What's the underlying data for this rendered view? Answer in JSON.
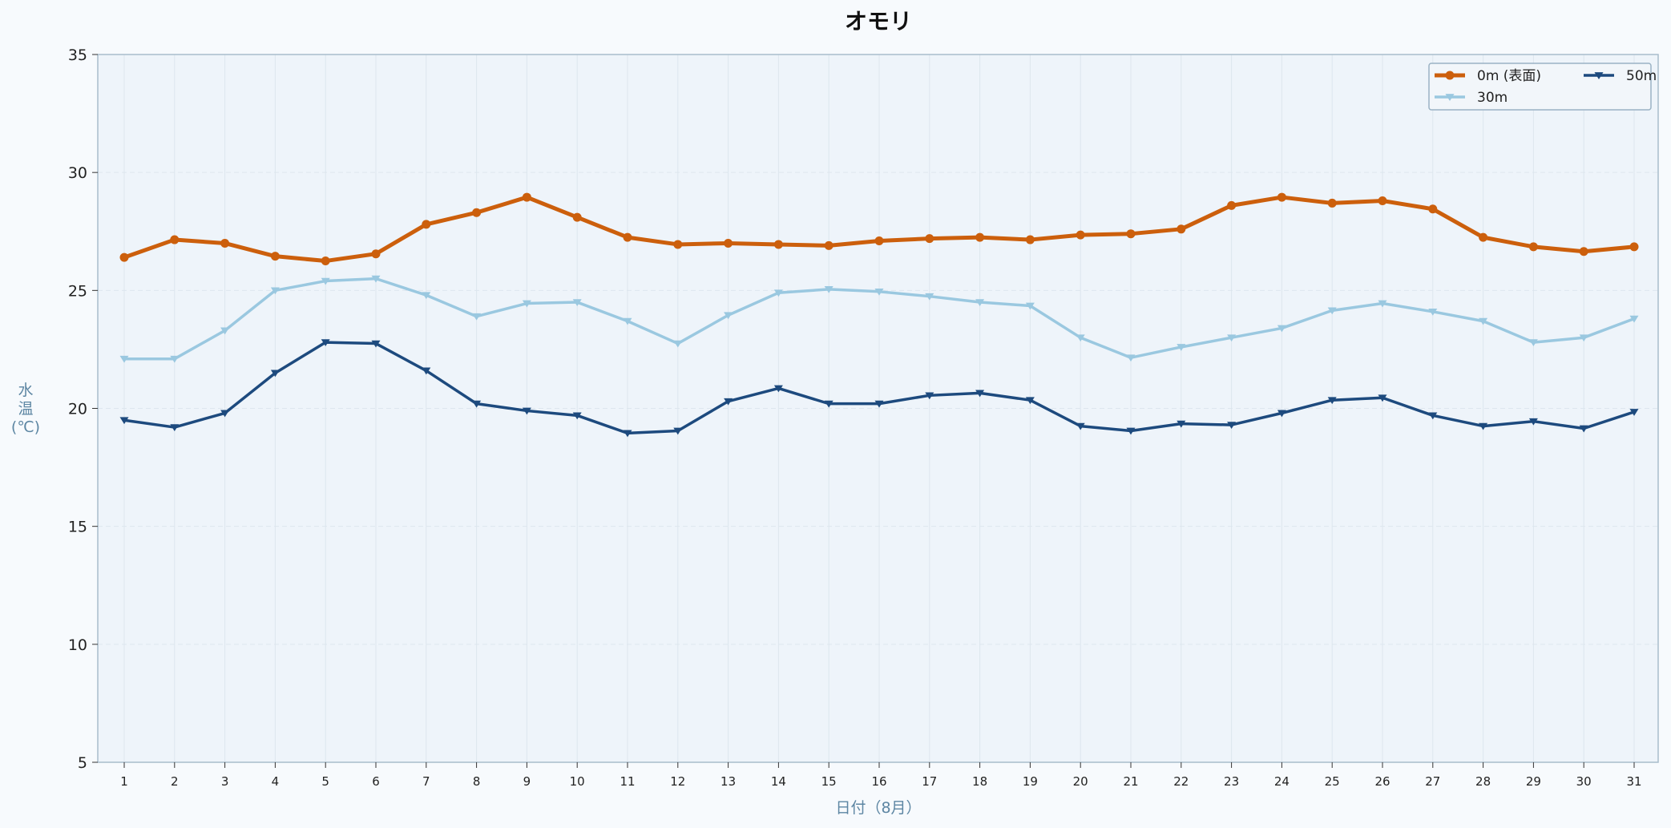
{
  "chart_data": {
    "type": "line",
    "title": "オモリ",
    "xlabel": "日付（8月）",
    "ylabel": [
      "水",
      "温",
      "(℃)"
    ],
    "x": [
      1,
      2,
      3,
      4,
      5,
      6,
      7,
      8,
      9,
      10,
      11,
      12,
      13,
      14,
      15,
      16,
      17,
      18,
      19,
      20,
      21,
      22,
      23,
      24,
      25,
      26,
      27,
      28,
      29,
      30,
      31
    ],
    "xlim": [
      0.5,
      31.5
    ],
    "ylim": [
      5,
      35
    ],
    "yticks": [
      5,
      10,
      15,
      20,
      25,
      30,
      35
    ],
    "grid": true,
    "legend_position": "top-right",
    "series": [
      {
        "name": "0m (表面)",
        "color": "#cc5f0c",
        "marker": "circle",
        "values": [
          26.4,
          27.15,
          27.0,
          26.45,
          26.25,
          26.55,
          27.8,
          28.3,
          28.95,
          28.1,
          27.25,
          26.95,
          27.0,
          26.95,
          26.9,
          27.1,
          27.2,
          27.25,
          27.15,
          27.35,
          27.4,
          27.6,
          28.6,
          28.95,
          28.7,
          28.8,
          28.45,
          27.25,
          26.85,
          26.65,
          26.85
        ]
      },
      {
        "name": "30m",
        "color": "#9ac8e0",
        "marker": "triangle-down",
        "values": [
          22.1,
          22.1,
          23.3,
          25.0,
          25.4,
          25.5,
          24.8,
          23.9,
          24.45,
          24.5,
          23.7,
          22.75,
          23.95,
          24.9,
          25.05,
          24.95,
          24.75,
          24.5,
          24.35,
          23.0,
          22.15,
          22.6,
          23.0,
          23.4,
          24.15,
          24.45,
          24.1,
          23.7,
          22.8,
          23.0,
          23.8
        ]
      },
      {
        "name": "50m",
        "color": "#1d4a7e",
        "marker": "triangle-down",
        "values": [
          19.5,
          19.2,
          19.8,
          21.5,
          22.8,
          22.75,
          21.6,
          20.2,
          19.9,
          19.7,
          18.95,
          19.05,
          20.3,
          20.85,
          20.2,
          20.2,
          20.55,
          20.65,
          20.35,
          19.25,
          19.05,
          19.35,
          19.3,
          19.8,
          20.35,
          20.45,
          19.7,
          19.25,
          19.45,
          19.15,
          19.85
        ]
      }
    ]
  }
}
